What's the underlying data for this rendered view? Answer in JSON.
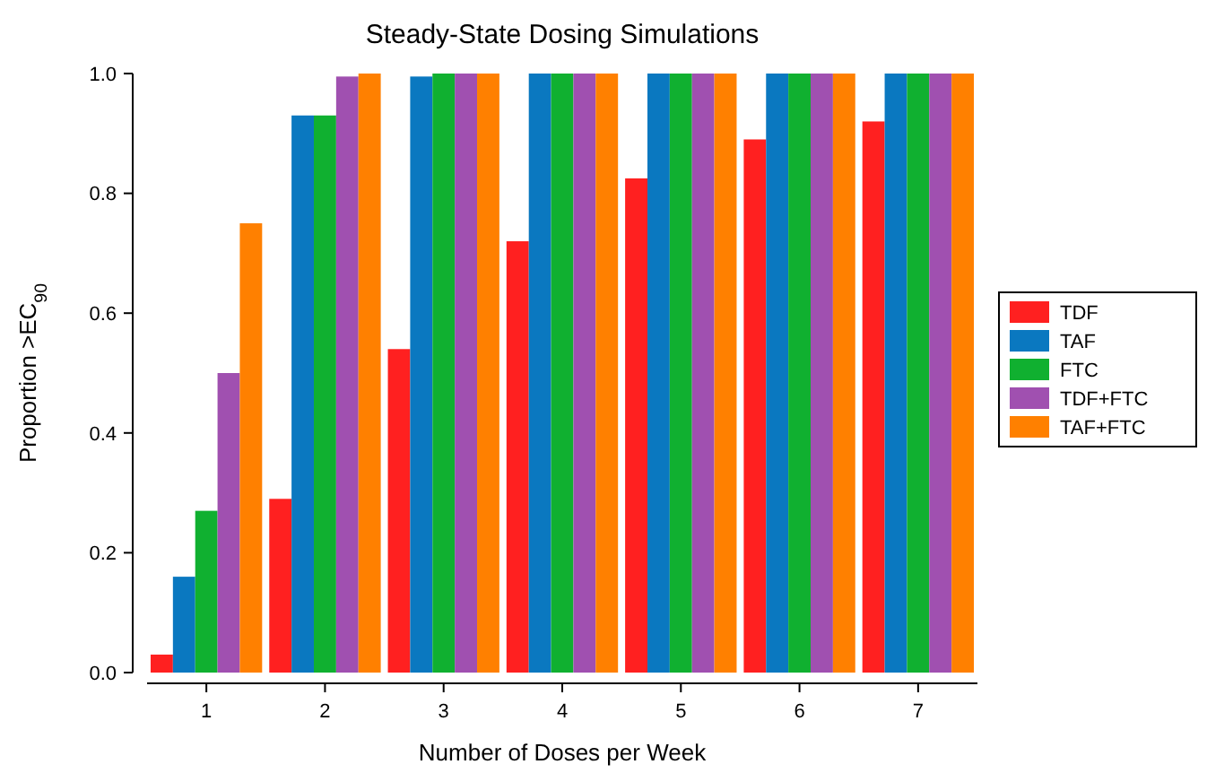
{
  "chart_data": {
    "type": "bar",
    "title": "Steady-State Dosing Simulations",
    "xlabel": "Number of Doses per Week",
    "ylabel": "Proportion >EC$_{90}$",
    "categories": [
      "1",
      "2",
      "3",
      "4",
      "5",
      "6",
      "7"
    ],
    "series": [
      {
        "name": "TDF",
        "color": "#ff2020",
        "values": [
          0.03,
          0.29,
          0.54,
          0.72,
          0.825,
          0.89,
          0.92
        ]
      },
      {
        "name": "TAF",
        "color": "#0a78c0",
        "values": [
          0.16,
          0.93,
          0.995,
          1.0,
          1.0,
          1.0,
          1.0
        ]
      },
      {
        "name": "FTC",
        "color": "#10b030",
        "values": [
          0.27,
          0.93,
          1.0,
          1.0,
          1.0,
          1.0,
          1.0
        ]
      },
      {
        "name": "TDF+FTC",
        "color": "#a050b0",
        "values": [
          0.5,
          0.995,
          1.0,
          1.0,
          1.0,
          1.0,
          1.0
        ]
      },
      {
        "name": "TAF+FTC",
        "color": "#ff8000",
        "values": [
          0.75,
          1.0,
          1.0,
          1.0,
          1.0,
          1.0,
          1.0
        ]
      }
    ],
    "ylim": [
      0,
      1
    ],
    "yticks": [
      {
        "value": 0,
        "label": "0.0"
      },
      {
        "value": 0.2,
        "label": "0.2"
      },
      {
        "value": 0.4,
        "label": "0.4"
      },
      {
        "value": 0.6,
        "label": "0.6"
      },
      {
        "value": 0.8,
        "label": "0.8"
      },
      {
        "value": 1,
        "label": "1.0"
      }
    ],
    "legend": "right",
    "grid": false
  }
}
